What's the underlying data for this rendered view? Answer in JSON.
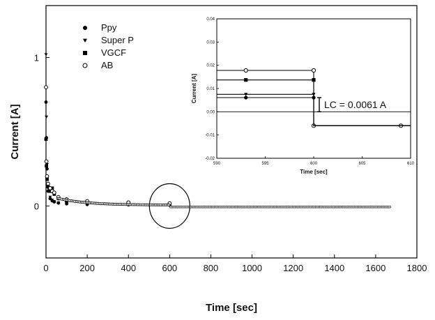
{
  "chart_data": [
    {
      "type": "scatter",
      "title": "",
      "xlabel": "Time [sec]",
      "ylabel": "Current [A]",
      "xlim": [
        0,
        1800
      ],
      "ylim": [
        -0.35,
        1.35
      ],
      "xticks": [
        0,
        200,
        400,
        600,
        800,
        1000,
        1200,
        1400,
        1600,
        1800
      ],
      "yticks": [
        0,
        1
      ],
      "grid": false,
      "legend_position": "top-left",
      "series": [
        {
          "name": "Ppy",
          "marker": "filled-circle",
          "x": [
            0,
            2,
            5,
            10,
            20,
            30,
            40,
            60,
            100,
            200,
            400,
            600
          ],
          "y": [
            0.7,
            0.46,
            0.25,
            0.1,
            0.05,
            0.035,
            0.028,
            0.02,
            0.015,
            0.01,
            0.008,
            0.0061
          ]
        },
        {
          "name": "Super P",
          "marker": "filled-triangle-down",
          "x": [
            0,
            2,
            5,
            10,
            20,
            30,
            40,
            60,
            100,
            200,
            400,
            600
          ],
          "y": [
            1.02,
            0.6,
            0.28,
            0.12,
            0.06,
            0.04,
            0.03,
            0.022,
            0.016,
            0.011,
            0.009,
            0.0075
          ]
        },
        {
          "name": "VGCF",
          "marker": "filled-square",
          "x": [
            0,
            2,
            5,
            10,
            20,
            30,
            40,
            60,
            100,
            200,
            400,
            600
          ],
          "y": [
            0.45,
            0.27,
            0.18,
            0.13,
            0.1,
            0.12,
            0.08,
            0.05,
            0.035,
            0.025,
            0.018,
            0.014
          ]
        },
        {
          "name": "AB",
          "marker": "open-circle",
          "x": [
            0,
            2,
            5,
            10,
            20,
            30,
            40,
            60,
            100,
            200,
            400,
            600
          ],
          "y": [
            0.8,
            0.3,
            0.2,
            0.15,
            0.12,
            0.1,
            0.09,
            0.06,
            0.045,
            0.032,
            0.024,
            0.018
          ]
        }
      ],
      "discharge_level": -0.006,
      "discharge_end": 1670,
      "annotation": "circle around t = 600 s"
    },
    {
      "type": "line",
      "title": "",
      "xlabel": "Time [sec]",
      "ylabel": "Current [A]",
      "xlim": [
        590,
        610
      ],
      "ylim": [
        -0.02,
        0.04
      ],
      "xticks": [
        590,
        595,
        600,
        605,
        610
      ],
      "yticks": [
        -0.02,
        -0.01,
        0.0,
        0.01,
        0.02,
        0.03,
        0.04
      ],
      "ytick_labels": [
        "-0.02",
        "-0.01",
        "0.00",
        "0.01",
        "0.02",
        "0.03",
        "0.04"
      ],
      "series": [
        {
          "name": "AB",
          "x": [
            590,
            600,
            600,
            610
          ],
          "y": [
            0.0178,
            0.0178,
            -0.006,
            -0.006
          ],
          "markers_x": [
            593,
            600,
            600,
            609
          ]
        },
        {
          "name": "VGCF",
          "x": [
            590,
            600,
            600,
            610
          ],
          "y": [
            0.0137,
            0.0137,
            -0.006,
            -0.006
          ],
          "markers_x": [
            593,
            600
          ]
        },
        {
          "name": "Super P",
          "x": [
            590,
            600,
            600,
            610
          ],
          "y": [
            0.0075,
            0.0075,
            -0.006,
            -0.006
          ],
          "markers_x": [
            593,
            600
          ]
        },
        {
          "name": "Ppy",
          "x": [
            590,
            600,
            600,
            610
          ],
          "y": [
            0.0061,
            0.0061,
            -0.006,
            -0.006
          ],
          "markers_x": [
            593,
            600
          ]
        }
      ],
      "reference_y": 0.0,
      "annotation_text": "LC = 0.0061 A"
    }
  ]
}
